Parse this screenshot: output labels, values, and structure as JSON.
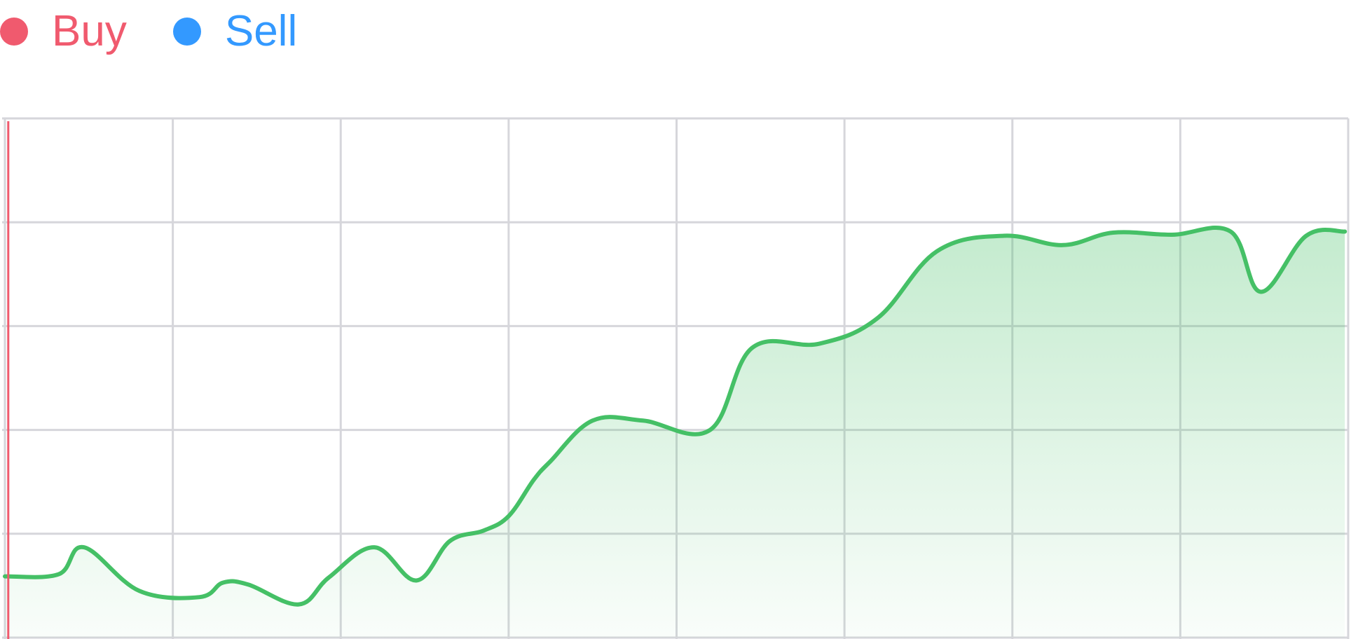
{
  "legend": {
    "items": [
      {
        "label": "Buy",
        "color": "#f05a6e"
      },
      {
        "label": "Sell",
        "color": "#3399ff"
      }
    ]
  },
  "chart_data": {
    "type": "area",
    "title": "",
    "xlabel": "",
    "ylabel": "",
    "grid": true,
    "legend_position": "top-left",
    "xlim": [
      0,
      8
    ],
    "ylim": [
      0,
      5
    ],
    "x_gridlines": 8,
    "y_gridlines": 5,
    "line_color": "#45c066",
    "fill_color": "#45c066",
    "marker_color": "#f05a6e",
    "marker_x": 0.02,
    "series": [
      {
        "x": [
          0,
          0.32,
          0.47,
          0.8,
          1.16,
          1.3,
          1.45,
          1.75,
          1.93,
          2.2,
          2.45,
          2.65,
          2.85,
          3.0,
          3.15,
          3.25,
          3.5,
          3.8,
          4.2,
          4.45,
          4.85,
          5.2,
          5.55,
          5.95,
          6.3,
          6.6,
          6.95,
          7.3,
          7.48,
          7.75,
          7.98
        ],
        "y": [
          0.59,
          0.61,
          0.87,
          0.45,
          0.39,
          0.53,
          0.51,
          0.32,
          0.58,
          0.87,
          0.55,
          0.93,
          1.03,
          1.17,
          1.52,
          1.7,
          2.09,
          2.09,
          2.0,
          2.79,
          2.83,
          3.08,
          3.72,
          3.87,
          3.78,
          3.9,
          3.88,
          3.91,
          3.33,
          3.87,
          3.91
        ]
      }
    ]
  }
}
